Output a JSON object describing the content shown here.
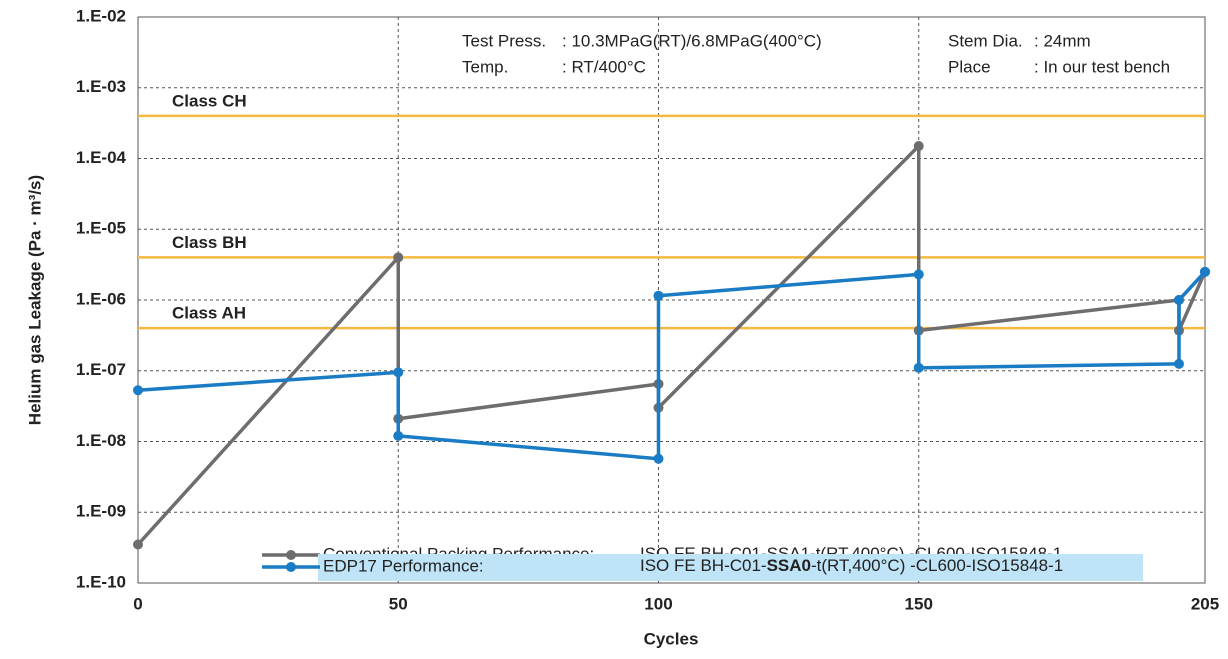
{
  "chart_data": {
    "type": "line",
    "xlabel": "Cycles",
    "ylabel": "Helium gas Leakage (Pa · m³/s)",
    "log_y": true,
    "grid": true,
    "xlim": [
      0,
      205
    ],
    "ylim": [
      1e-10,
      0.01
    ],
    "xticks": [
      0,
      50,
      100,
      150,
      205
    ],
    "yticks": [
      {
        "value": 1e-10,
        "label": "1.E-10"
      },
      {
        "value": 1e-09,
        "label": "1.E-09"
      },
      {
        "value": 1e-08,
        "label": "1.E-08"
      },
      {
        "value": 1e-07,
        "label": "1.E-07"
      },
      {
        "value": 1e-06,
        "label": "1.E-06"
      },
      {
        "value": 1e-05,
        "label": "1.E-05"
      },
      {
        "value": 0.0001,
        "label": "1.E-04"
      },
      {
        "value": 0.001,
        "label": "1.E-03"
      },
      {
        "value": 0.01,
        "label": "1.E-02"
      }
    ],
    "thresholds": {
      "color": "#f5b942",
      "items": [
        {
          "label": "Class CH",
          "value": 0.0004
        },
        {
          "label": "Class BH",
          "value": 4e-06
        },
        {
          "label": "Class AH",
          "value": 4e-07
        }
      ]
    },
    "annotations": [
      [
        {
          "label": "Test Press.",
          "value": ": 10.3MPaG(RT)/6.8MPaG(400°C)"
        },
        {
          "label": "Temp.",
          "value": ": RT/400°C"
        }
      ],
      [
        {
          "label": "Stem Dia.",
          "value": ": 24mm"
        },
        {
          "label": "Place",
          "value": ": In our test bench"
        }
      ]
    ],
    "series": [
      {
        "name": "Conventional Packing Performance:",
        "designation": [
          "ISO FE BH-C01-SSA1-t(RT,400°C) -CL600-ISO15848-1"
        ],
        "color": "#6d6d6d",
        "x": [
          0,
          50,
          50,
          100,
          100,
          150,
          150,
          200,
          200,
          205
        ],
        "values": [
          3.5e-10,
          4e-06,
          2.1e-08,
          6.5e-08,
          3e-08,
          0.00015,
          3.7e-07,
          1e-06,
          3.7e-07,
          2.5e-06
        ]
      },
      {
        "name": "EDP17 Performance:",
        "designation": [
          "ISO FE BH-C01-",
          "SSA0",
          "-t(RT,400°C) -CL600-ISO15848-1"
        ],
        "color": "#1a7cc4",
        "highlight": "#bfe3f7",
        "x": [
          0,
          50,
          50,
          100,
          100,
          150,
          150,
          200,
          200,
          205
        ],
        "values": [
          5.3e-08,
          9.5e-08,
          1.2e-08,
          5.7e-09,
          1.15e-06,
          2.3e-06,
          1.1e-07,
          1.25e-07,
          1e-06,
          2.5e-06
        ]
      }
    ]
  }
}
